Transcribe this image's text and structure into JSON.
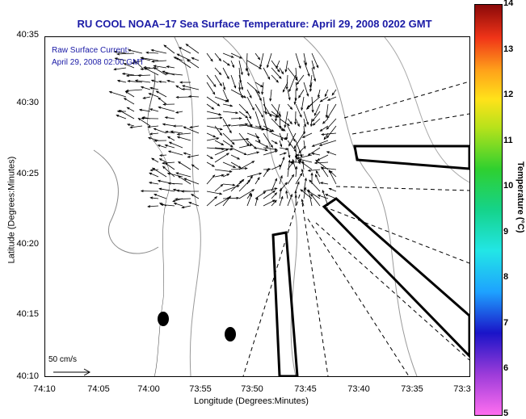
{
  "title": "RU COOL  NOAA–17  Sea Surface Temperature:  April 29, 2008 0202 GMT",
  "annotation": {
    "line1": "Raw Surface Current:",
    "line2": "April 29, 2008 02:00 GMT"
  },
  "axes": {
    "xlabel": "Longitude (Degrees:Minutes)",
    "ylabel": "Latitude (Degrees:Minutes)",
    "xticks": [
      "74:10",
      "74:05",
      "74:00",
      "73:55",
      "73:50",
      "73:45",
      "73:40",
      "73:35",
      "73:3"
    ],
    "yticks": [
      "40:35",
      "40:30",
      "40:25",
      "40:20",
      "40:15",
      "40:10"
    ]
  },
  "scale_label": "50 cm/s",
  "colorbar": {
    "label": "Temperature (°C)",
    "ticks": [
      "14",
      "13",
      "12",
      "11",
      "10",
      "9",
      "8",
      "7",
      "6",
      "5"
    ]
  }
}
